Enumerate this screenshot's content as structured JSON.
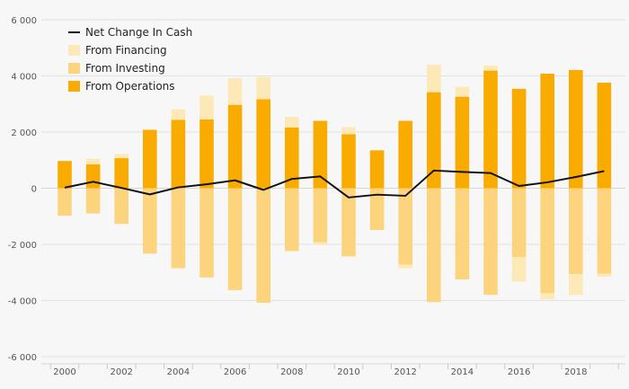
{
  "chart_data": {
    "type": "bar",
    "title": "",
    "xlabel": "",
    "ylabel": "",
    "ylim": [
      -6000,
      6000
    ],
    "yticks": [
      6000,
      4000,
      2000,
      0,
      -2000,
      -4000,
      -6000
    ],
    "ytick_labels": [
      "6 000",
      "4 000",
      "2 000",
      "0",
      "-2 000",
      "-4 000",
      "-6 000"
    ],
    "grid": true,
    "legend_position": "top-left",
    "categories": [
      "2000",
      "2001",
      "2002",
      "2003",
      "2004",
      "2005",
      "2006",
      "2007",
      "2008",
      "2009",
      "2010",
      "2011",
      "2012",
      "2013",
      "2014",
      "2015",
      "2016",
      "2017",
      "2018",
      "2019"
    ],
    "xtick_labels": [
      "2000",
      "2002",
      "2004",
      "2006",
      "2008",
      "2010",
      "2012",
      "2014",
      "2016",
      "2018"
    ],
    "series": [
      {
        "name": "Net Change In Cash",
        "kind": "line",
        "color": "#111111",
        "values": [
          20,
          230,
          10,
          -220,
          30,
          140,
          280,
          -60,
          330,
          420,
          -330,
          -230,
          -270,
          630,
          580,
          540,
          80,
          210,
          400,
          610
        ]
      },
      {
        "name": "From Financing",
        "kind": "bar",
        "color": "#fde9b8",
        "values": [
          0,
          200,
          150,
          0,
          370,
          850,
          950,
          800,
          380,
          -100,
          250,
          0,
          -130,
          980,
          350,
          180,
          -880,
          -220,
          -750,
          -100
        ]
      },
      {
        "name": "From Investing",
        "kind": "bar",
        "color": "#fdd47e",
        "values": [
          -980,
          -900,
          -1270,
          -2330,
          -2850,
          -3180,
          -3630,
          -4080,
          -2240,
          -1920,
          -2430,
          -1490,
          -2720,
          -4060,
          -3250,
          -3800,
          -2450,
          -3740,
          -3060,
          -3050
        ]
      },
      {
        "name": "From Operations",
        "kind": "bar",
        "color": "#f9ab00",
        "values": [
          970,
          850,
          1070,
          2080,
          2440,
          2450,
          2970,
          3170,
          2160,
          2400,
          1920,
          1350,
          2400,
          3420,
          3260,
          4190,
          3540,
          4080,
          4210,
          3760
        ]
      }
    ]
  }
}
